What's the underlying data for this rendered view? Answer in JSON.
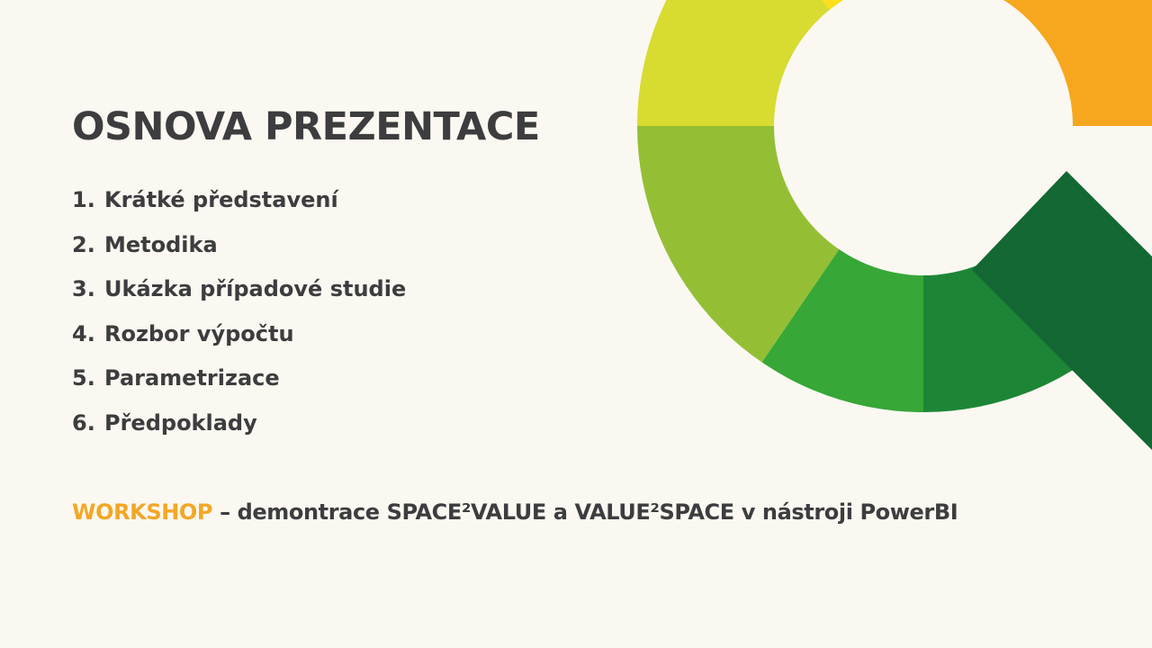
{
  "slide": {
    "title": "OSNOVA PREZENTACE",
    "agenda": [
      {
        "number": "1.",
        "label": "Krátké představení"
      },
      {
        "number": "2.",
        "label": "Metodika"
      },
      {
        "number": "3.",
        "label": "Ukázka případové studie"
      },
      {
        "number": "4.",
        "label": "Rozbor výpočtu"
      },
      {
        "number": "5.",
        "label": "Parametrizace"
      },
      {
        "number": "6.",
        "label": "Předpoklady"
      }
    ],
    "workshop": {
      "highlight": "WORKSHOP",
      "text": " – demontrace SPACE²VALUE a VALUE²SPACE v nástroji PowerBI"
    },
    "colors": {
      "background": "#fbf8f1",
      "text": "#3d3d3f",
      "highlight": "#f3a726",
      "ring_orange": "#f6a71d",
      "ring_amber": "#f8c21a",
      "ring_yellow": "#fde01b",
      "ring_lime": "#d8db30",
      "ring_yellow_green": "#94bf35",
      "ring_green": "#37a737",
      "ring_mid_green": "#1c8636",
      "handle_dark_green": "#136833"
    },
    "decoration": "magnifying-glass-icon"
  }
}
